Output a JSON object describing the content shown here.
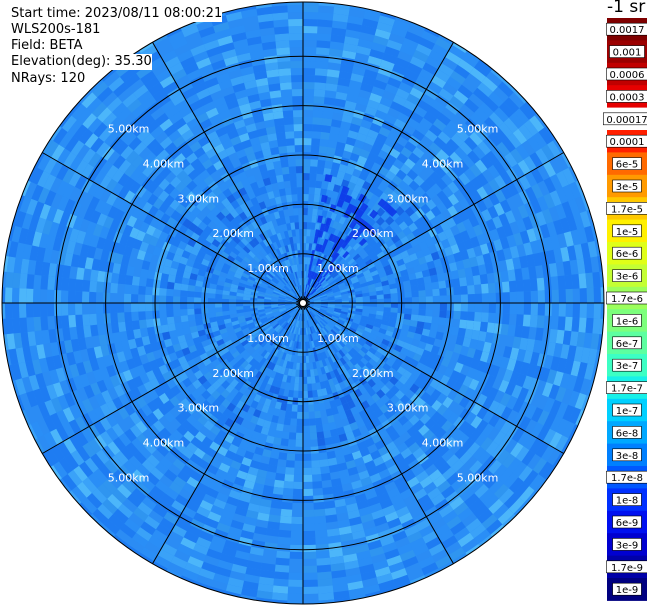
{
  "header": {
    "start_time": "Start time: 2023/08/11 08:00:21",
    "instrument": "WLS200s-181",
    "field": "Field: BETA",
    "elevation": "Elevation(deg): 35.30",
    "nrays": "NRays: 120"
  },
  "units_label": "-1 sr",
  "chart_data": {
    "type": "heatmap",
    "projection": "polar",
    "field": "BETA",
    "elevation_deg": 35.3,
    "n_rays": 120,
    "range_rings_km": [
      1,
      2,
      3,
      4,
      5
    ],
    "range_labels": [
      "1.00km",
      "2.00km",
      "3.00km",
      "4.00km",
      "5.00km"
    ],
    "max_range_km": 6.1,
    "spokes_deg": [
      0,
      30,
      60,
      90,
      120,
      150,
      180,
      210,
      240,
      270,
      300,
      330
    ],
    "colorbar": {
      "labels": [
        "0.0017",
        "0.001",
        "0.0006",
        "0.0003",
        "0.00017",
        "0.0001",
        "6e-5",
        "3e-5",
        "1.7e-5",
        "1e-5",
        "6e-6",
        "3e-6",
        "1.7e-6",
        "1e-6",
        "6e-7",
        "3e-7",
        "1.7e-7",
        "1e-7",
        "6e-8",
        "3e-8",
        "1.7e-8",
        "1e-8",
        "6e-9",
        "3e-9",
        "1.7e-9",
        "1e-9"
      ],
      "colors": [
        "#7f0000",
        "#9b0000",
        "#c00000",
        "#e60000",
        "#ffffff",
        "#ff2000",
        "#ff6a00",
        "#ff9a00",
        "#ffc800",
        "#fff000",
        "#e0ff18",
        "#c4ff34",
        "#9cff5c",
        "#7cff7c",
        "#5cffa0",
        "#3cffc4",
        "#18f0e8",
        "#00d0ff",
        "#00a8ff",
        "#0080ff",
        "#0058ff",
        "#0030ff",
        "#0010f0",
        "#0000d0",
        "#0000a8",
        "#000080"
      ]
    },
    "background_levels": [
      "#1e7cf2",
      "#2a8ef6",
      "#3aa2f8",
      "#4cb6fa",
      "#1766e6",
      "#2f95f0"
    ],
    "enhanced_sector": {
      "azimuth_from_deg": 10,
      "azimuth_to_deg": 45,
      "range_km": [
        0.1,
        2.6
      ],
      "color": "#0c34e8"
    }
  }
}
